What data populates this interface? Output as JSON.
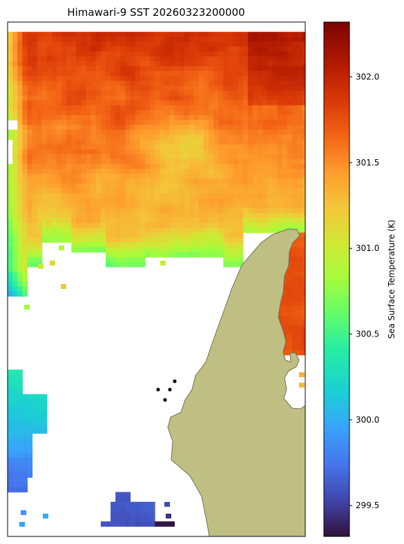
{
  "chart_data": {
    "type": "heatmap",
    "title": "Himawari-9 SST 20260323200000",
    "colorbar": {
      "label": "Sea Surface Temperature (K)",
      "range": [
        299.32,
        302.32
      ],
      "ticks": [
        299.5,
        300.0,
        300.5,
        301.0,
        301.5,
        302.0
      ],
      "tick_labels": [
        "299.5",
        "300.0",
        "300.5",
        "301.0",
        "301.5",
        "302.0"
      ],
      "colormap": "turbo",
      "placement": "right"
    },
    "grid": false,
    "land_color": "#bfbf84",
    "land_edge_color": "#707050",
    "station_marker_color": "#000000",
    "station_count": 4,
    "sst_field_summary": [
      {
        "region": "north",
        "approx_value": 302.1
      },
      {
        "region": "central",
        "approx_value": 301.6
      },
      {
        "region": "western-edge",
        "approx_value": 300.9
      },
      {
        "region": "southwest-edge",
        "approx_value": 300.2
      },
      {
        "region": "south-cluster",
        "approx_value": 299.6
      },
      {
        "region": "east-strip",
        "approx_value": 301.8
      }
    ]
  }
}
